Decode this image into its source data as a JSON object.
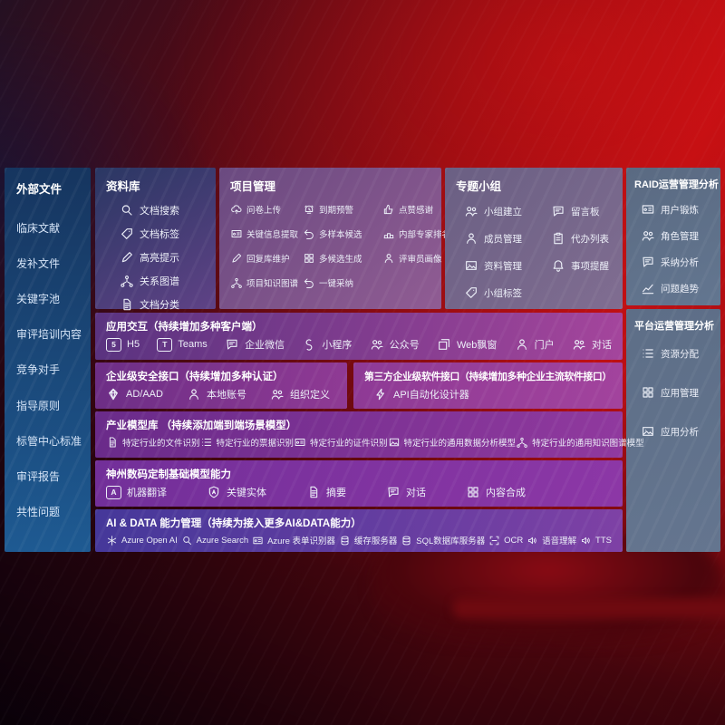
{
  "colors": {
    "bg-red": "#bf0f13",
    "bg-dark": "#1c0712",
    "sidebar-from": "#16355f",
    "sidebar-to": "#1e5a92",
    "library-from": "#2a3763",
    "library-to": "#5f4286",
    "project-from": "#6a4a80",
    "project-to": "#905c93",
    "group-from": "#6a5f83",
    "group-to": "#806d91",
    "raid-from": "#5a6a82",
    "raid-to": "#637690",
    "platform-from": "#5d6e87",
    "platform-to": "#64758f",
    "band1-from": "#5a3380",
    "band1-to": "#a4459c",
    "band2a-from": "#6d2e86",
    "band2a-to": "#8f3a94",
    "band2b-from": "#8e3a95",
    "band2b-to": "#a2439d",
    "band3-from": "#6a2b8a",
    "band3-to": "#90399e",
    "band4-from": "#722f99",
    "band4-to": "#8c37a6",
    "band5-from": "#45389a",
    "band5-to": "#7e41a5"
  },
  "sidebar": {
    "title": "外部文件",
    "items": [
      {
        "label": "临床文献"
      },
      {
        "label": "发补文件"
      },
      {
        "label": "关键字池"
      },
      {
        "label": "审评培训内容"
      },
      {
        "label": "竞争对手"
      },
      {
        "label": "指导原则"
      },
      {
        "label": "标管中心标准"
      },
      {
        "label": "审评报告"
      },
      {
        "label": "共性问题"
      }
    ]
  },
  "panels": {
    "library": {
      "title": "资料库",
      "items": [
        {
          "icon": "document-search",
          "label": "文档搜索"
        },
        {
          "icon": "document-tag",
          "label": "文档标签"
        },
        {
          "icon": "highlight",
          "label": "高亮提示"
        },
        {
          "icon": "relation-graph",
          "label": "关系图谱"
        },
        {
          "icon": "document-category",
          "label": "文档分类"
        }
      ]
    },
    "project": {
      "title": "项目管理",
      "items": [
        {
          "icon": "questionnaire-upload",
          "label": "问卷上传"
        },
        {
          "icon": "due-warning",
          "label": "到期预警"
        },
        {
          "icon": "praise",
          "label": "点赞感谢"
        },
        {
          "icon": "key-info-extract",
          "label": "关键信息提取"
        },
        {
          "icon": "multi-sample",
          "label": "多样本候选"
        },
        {
          "icon": "expert-ranking",
          "label": "内部专家排名"
        },
        {
          "icon": "reply-maintenance",
          "label": "回复库维护"
        },
        {
          "icon": "multi-candidate",
          "label": "多候选生成"
        },
        {
          "icon": "reviewer-profile",
          "label": "评审员画像"
        },
        {
          "icon": "project-knowledge-graph",
          "label": "项目知识图谱"
        },
        {
          "icon": "one-click-adopt",
          "label": "一键采纳"
        }
      ]
    },
    "group": {
      "title": "专题小组",
      "items": [
        {
          "icon": "group-create",
          "label": "小组建立"
        },
        {
          "icon": "message-board",
          "label": "留言板"
        },
        {
          "icon": "member-manage",
          "label": "成员管理"
        },
        {
          "icon": "todo-list",
          "label": "代办列表"
        },
        {
          "icon": "material-manage",
          "label": "资料管理"
        },
        {
          "icon": "reminder",
          "label": "事项提醒"
        },
        {
          "icon": "group-tag",
          "label": "小组标签"
        }
      ]
    },
    "raid": {
      "title": "RAID运营管理分析",
      "items": [
        {
          "icon": "user-card",
          "label": "用户锻炼"
        },
        {
          "icon": "role-manage",
          "label": "角色管理"
        },
        {
          "icon": "adoption-analysis",
          "label": "采纳分析"
        },
        {
          "icon": "issue-trend",
          "label": "问题趋势"
        }
      ]
    },
    "platform": {
      "title": "平台运营管理分析",
      "items": [
        {
          "icon": "resource-allocation",
          "label": "资源分配"
        },
        {
          "icon": "app-manage",
          "label": "应用管理"
        },
        {
          "icon": "app-analysis",
          "label": "应用分析"
        }
      ]
    }
  },
  "bands": {
    "interaction": {
      "title": "应用交互（持续增加多种客户端）",
      "items": [
        {
          "icon": "h5",
          "label": "H5"
        },
        {
          "icon": "teams",
          "label": "Teams"
        },
        {
          "icon": "wecom",
          "label": "企业微信"
        },
        {
          "icon": "miniprogram",
          "label": "小程序"
        },
        {
          "icon": "official-account",
          "label": "公众号"
        },
        {
          "icon": "web-popup",
          "label": "Web飘窗"
        },
        {
          "icon": "portal",
          "label": "门户"
        },
        {
          "icon": "dialogue",
          "label": "对话"
        }
      ]
    },
    "security": {
      "title": "企业级安全接口（持续增加多种认证）",
      "items": [
        {
          "icon": "ad-aad",
          "label": "AD/AAD"
        },
        {
          "icon": "local-account",
          "label": "本地账号"
        },
        {
          "icon": "org-definition",
          "label": "组织定义"
        }
      ]
    },
    "thirdparty": {
      "title": "第三方企业级软件接口（持续增加多种企业主流软件接口）",
      "items": [
        {
          "icon": "api-designer",
          "label": "API自动化设计器"
        }
      ]
    },
    "industry": {
      "title": "产业模型库 （持续添加端到端场景模型）",
      "items": [
        {
          "icon": "file-recognition",
          "label": "特定行业的文件识别"
        },
        {
          "icon": "invoice-recognition",
          "label": "特定行业的票据识别"
        },
        {
          "icon": "id-recognition",
          "label": "特定行业的证件识别"
        },
        {
          "icon": "data-analysis-model",
          "label": "特定行业的通用数据分析模型"
        },
        {
          "icon": "knowledge-graph-model",
          "label": "特定行业的通用知识图谱模型"
        }
      ]
    },
    "foundation": {
      "title": "神州数码定制基础模型能力",
      "items": [
        {
          "icon": "machine-translation",
          "label": "机器翻译"
        },
        {
          "icon": "key-entity",
          "label": "关键实体"
        },
        {
          "icon": "summary",
          "label": "摘要"
        },
        {
          "icon": "chat-dialogue",
          "label": "对话"
        },
        {
          "icon": "content-synthesis",
          "label": "内容合成"
        }
      ]
    },
    "aidata": {
      "title": "AI & DATA 能力管理（持续为接入更多AI&DATA能力）",
      "items": [
        {
          "icon": "openai",
          "label": "Azure Open AI"
        },
        {
          "icon": "azure-search",
          "label": "Azure Search"
        },
        {
          "icon": "form-recognizer",
          "label": "Azure 表单识别器"
        },
        {
          "icon": "cache-server",
          "label": "缓存服务器"
        },
        {
          "icon": "sql-server",
          "label": "SQL数据库服务器"
        },
        {
          "icon": "ocr",
          "label": "OCR"
        },
        {
          "icon": "speech-understanding",
          "label": "语音理解"
        },
        {
          "icon": "tts",
          "label": "TTS"
        }
      ]
    }
  }
}
